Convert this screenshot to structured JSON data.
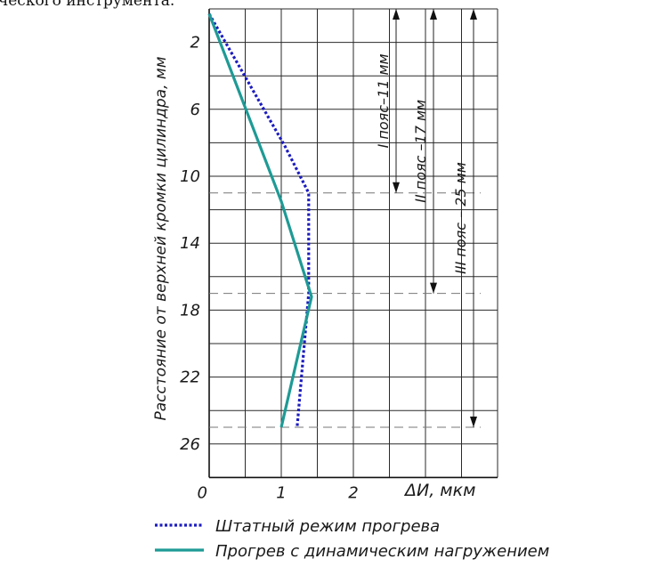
{
  "caption_fragment": "ческого инструмента.",
  "chart_data": {
    "type": "line",
    "orientation": "vertical-depth",
    "xlabel": "ΔИ, мкм",
    "ylabel": "Расстояние от верхней кромки цилиндра, мм",
    "xlim": [
      0,
      4
    ],
    "ylim": [
      0,
      28
    ],
    "y_inverted": true,
    "grid": true,
    "x_ticks": [
      {
        "value": 0,
        "label": "0"
      },
      {
        "value": 1,
        "label": "1"
      },
      {
        "value": 2,
        "label": "2"
      }
    ],
    "y_ticks": [
      {
        "value": 2,
        "label": "2"
      },
      {
        "value": 6,
        "label": "6"
      },
      {
        "value": 10,
        "label": "10"
      },
      {
        "value": 14,
        "label": "14"
      },
      {
        "value": 18,
        "label": "18"
      },
      {
        "value": 22,
        "label": "22"
      },
      {
        "value": 26,
        "label": "26"
      }
    ],
    "series": [
      {
        "name": "Штатный режим прогрева",
        "color": "#1c1cbf",
        "style": "dotted",
        "points": [
          {
            "x": 0.0,
            "y": 0.3
          },
          {
            "x": 1.05,
            "y": 8.2
          },
          {
            "x": 1.38,
            "y": 11.0
          },
          {
            "x": 1.38,
            "y": 17.0
          },
          {
            "x": 1.22,
            "y": 25.0
          }
        ]
      },
      {
        "name": "Прогрев с динамическим нагружением",
        "color": "#1e9a95",
        "style": "solid",
        "points": [
          {
            "x": 0.0,
            "y": 0.3
          },
          {
            "x": 1.0,
            "y": 11.5
          },
          {
            "x": 1.42,
            "y": 17.2
          },
          {
            "x": 1.0,
            "y": 25.0
          }
        ]
      }
    ],
    "zones": [
      {
        "label": "I пояс–11 мм",
        "from": 0,
        "to": 11
      },
      {
        "label": "II пояс –17 мм",
        "from": 0,
        "to": 17
      },
      {
        "label": "III пояс – 25 мм",
        "from": 0,
        "to": 25
      }
    ],
    "legend_position": "bottom"
  }
}
